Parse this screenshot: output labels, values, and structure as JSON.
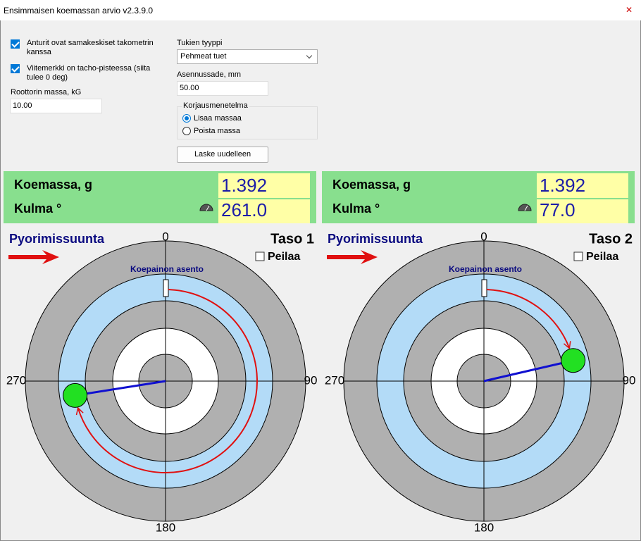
{
  "window": {
    "title": "Ensimmaisen koemassan arvio v2.3.9.0"
  },
  "settings": {
    "concentric": {
      "label": "Anturit ovat samakeskiset takometrin kanssa",
      "checked": true
    },
    "reference": {
      "label": "Viitemerkki on tacho-pisteessa (siita tulee 0 deg)",
      "checked": true
    },
    "rotor_mass": {
      "label": "Roottorin massa, kG",
      "value": "10.00"
    },
    "support_type": {
      "label": "Tukien tyyppi",
      "value": "Pehmeat tuet"
    },
    "mount_radius": {
      "label": "Asennussade, mm",
      "value": "50.00"
    },
    "correction": {
      "label": "Korjausmenetelma",
      "options": [
        "Lisaa massaa",
        "Poista massa"
      ],
      "selected": 0
    },
    "recalc_button": "Laske uudelleen"
  },
  "planes": [
    {
      "mass_label": "Koemassa, g",
      "mass": "1.392",
      "angle_label": "Kulma  °",
      "angle": "261.0",
      "direction_label": "Pyorimissuunta",
      "title": "Taso 1",
      "mirror_label": "Peilaa",
      "mirror": false,
      "marker_label": "Koepainon asento",
      "angle_ticks": [
        "0",
        "90",
        "180",
        "270"
      ]
    },
    {
      "mass_label": "Koemassa, g",
      "mass": "1.392",
      "angle_label": "Kulma  °",
      "angle": "77.0",
      "direction_label": "Pyorimissuunta",
      "title": "Taso 2",
      "mirror_label": "Peilaa",
      "mirror": false,
      "marker_label": "Koepainon asento",
      "angle_ticks": [
        "0",
        "90",
        "180",
        "270"
      ]
    }
  ]
}
